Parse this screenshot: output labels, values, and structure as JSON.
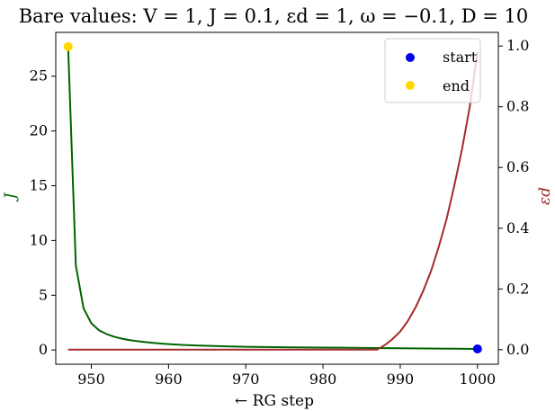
{
  "chart_data": {
    "type": "line",
    "title": "Bare values: V = 1, J = 0.1, εd = 1, ω = −0.1, D = 10",
    "xlabel": "← RG step",
    "ylabel_left": "J",
    "ylabel_right": "εd",
    "xlim": [
      945.4,
      1002.7
    ],
    "ylim_left": [
      -1.3,
      29.0
    ],
    "ylim_right": [
      -0.048,
      1.045
    ],
    "x_ticks": [
      950,
      960,
      970,
      980,
      990,
      1000
    ],
    "y_left_ticks": [
      0,
      5,
      10,
      15,
      20,
      25
    ],
    "y_right_ticks": [
      0.0,
      0.2,
      0.4,
      0.6,
      0.8,
      1.0
    ],
    "grid": false,
    "legend_position": "top-right",
    "colors": {
      "J": "#006400",
      "eps": "#a52a2a",
      "start": "#0000ee",
      "end": "#ffd700"
    },
    "series": [
      {
        "axis": "left",
        "x": [
          947,
          948,
          949,
          950,
          951,
          952,
          953,
          954,
          955,
          956,
          957,
          958,
          959,
          960,
          962,
          964,
          966,
          968,
          970,
          975,
          980,
          985,
          990,
          995,
          1000
        ],
        "values": [
          27.7,
          7.7,
          3.8,
          2.45,
          1.8,
          1.45,
          1.2,
          1.03,
          0.9,
          0.8,
          0.72,
          0.65,
          0.59,
          0.54,
          0.46,
          0.4,
          0.36,
          0.32,
          0.29,
          0.25,
          0.22,
          0.19,
          0.16,
          0.13,
          0.1
        ]
      },
      {
        "axis": "right",
        "x": [
          947,
          950,
          960,
          970,
          980,
          987,
          988,
          989,
          990,
          991,
          992,
          993,
          994,
          995,
          996,
          997,
          998,
          999,
          1000
        ],
        "values": [
          0.0,
          0.0,
          0.0,
          0.0,
          0.0,
          0.0,
          0.015,
          0.035,
          0.06,
          0.095,
          0.14,
          0.195,
          0.26,
          0.34,
          0.43,
          0.54,
          0.66,
          0.8,
          0.98
        ]
      }
    ],
    "markers": [
      {
        "name": "start",
        "x": 1000,
        "y": 0.1,
        "axis": "left"
      },
      {
        "name": "end",
        "x": 947,
        "y": 27.7,
        "axis": "left"
      }
    ],
    "legend": [
      {
        "label": "start"
      },
      {
        "label": "end"
      }
    ]
  }
}
